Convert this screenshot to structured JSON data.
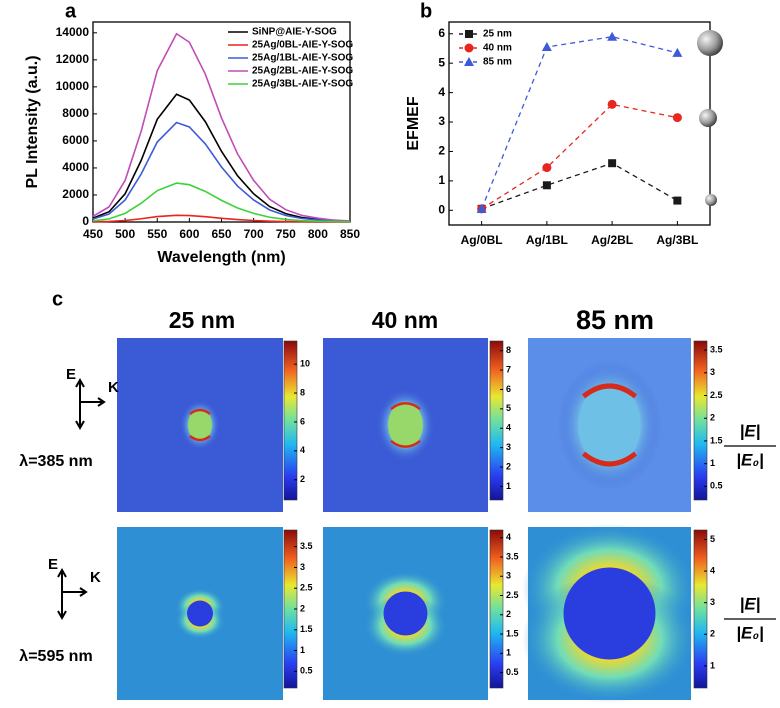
{
  "chart_data": [
    {
      "type": "line",
      "panel_label": "a",
      "x_label": "Wavelength (nm)",
      "y_label": "PL Intensity (a.u.)",
      "x": [
        450,
        475,
        500,
        525,
        550,
        580,
        600,
        625,
        650,
        675,
        700,
        725,
        750,
        775,
        800,
        825,
        850
      ],
      "series": [
        {
          "name": "SiNP@AIE-Y-SOG",
          "color": "#000000",
          "values": [
            285,
            760,
            2090,
            4560,
            7600,
            9450,
            9030,
            7410,
            5230,
            3420,
            2090,
            1140,
            620,
            330,
            190,
            95,
            50
          ]
        },
        {
          "name": "25Ag/0BL-AIE-Y-SOG",
          "color": "#e8251e",
          "values": [
            15,
            40,
            110,
            240,
            400,
            495,
            475,
            390,
            275,
            180,
            110,
            60,
            35,
            20,
            10,
            5,
            3
          ]
        },
        {
          "name": "25Ag/1BL-AIE-Y-SOG",
          "color": "#3d5bd9",
          "values": [
            220,
            590,
            1630,
            3550,
            5920,
            7360,
            7030,
            5770,
            4070,
            2660,
            1630,
            890,
            480,
            260,
            150,
            75,
            35
          ]
        },
        {
          "name": "25Ag/2BL-AIE-Y-SOG",
          "color": "#c04cb8",
          "values": [
            420,
            1120,
            3080,
            6720,
            11200,
            13930,
            13300,
            10920,
            7700,
            5040,
            3080,
            1680,
            910,
            490,
            280,
            140,
            70
          ]
        },
        {
          "name": "25Ag/3BL-AIE-Y-SOG",
          "color": "#3ed23a",
          "values": [
            90,
            230,
            640,
            1390,
            2320,
            2880,
            2760,
            2260,
            1600,
            1040,
            640,
            350,
            190,
            100,
            60,
            30,
            15
          ]
        }
      ],
      "xlim": [
        450,
        850
      ],
      "xticks": [
        450,
        500,
        550,
        600,
        650,
        700,
        750,
        800,
        850
      ],
      "ylim": [
        0,
        14800
      ],
      "yticks": [
        0,
        2000,
        4000,
        6000,
        8000,
        10000,
        12000,
        14000
      ],
      "legend": "top-right"
    },
    {
      "type": "line",
      "panel_label": "b",
      "y_label": "EFMEF",
      "categories": [
        "Ag/0BL",
        "Ag/1BL",
        "Ag/2BL",
        "Ag/3BL"
      ],
      "series": [
        {
          "name": "25 nm",
          "color": "#1a1a1a",
          "marker": "square",
          "line_style": "dashed",
          "values": [
            0.05,
            0.85,
            1.6,
            0.33
          ]
        },
        {
          "name": "40 nm",
          "color": "#e8251e",
          "marker": "circle",
          "line_style": "dashed",
          "values": [
            0.05,
            1.45,
            3.6,
            3.15
          ]
        },
        {
          "name": "85 nm",
          "color": "#3d5bd9",
          "marker": "triangle",
          "line_style": "dashed",
          "values": [
            0.05,
            5.55,
            5.9,
            5.35
          ]
        }
      ],
      "ylim": [
        -0.5,
        6.4
      ],
      "yticks": [
        0,
        1,
        2,
        3,
        4,
        5,
        6
      ],
      "legend": "top-left"
    }
  ],
  "panel_c": {
    "label": "c",
    "columns": [
      "25 nm",
      "40 nm",
      "85 nm"
    ],
    "rows": [
      {
        "wavelength": "λ=385 nm",
        "field_axis": "E",
        "wave_axis": "K",
        "quantity": {
          "numerator": "|E|",
          "denominator": "|E₀|"
        },
        "colorbars": [
          {
            "lim": [
              0.6,
              11.6
            ],
            "ticks": [
              2,
              4,
              6,
              8,
              10
            ]
          },
          {
            "lim": [
              0.3,
              8.5
            ],
            "ticks": [
              1,
              2,
              3,
              4,
              5,
              6,
              7,
              8
            ]
          },
          {
            "lim": [
              0.2,
              3.7
            ],
            "ticks": [
              0.5,
              1,
              1.5,
              2,
              2.5,
              3,
              3.5
            ]
          }
        ]
      },
      {
        "wavelength": "λ=595 nm",
        "field_axis": "E",
        "wave_axis": "K",
        "quantity": {
          "numerator": "|E|",
          "denominator": "|E₀|"
        },
        "colorbars": [
          {
            "lim": [
              0.1,
              3.9
            ],
            "ticks": [
              0.5,
              1,
              1.5,
              2,
              2.5,
              3,
              3.5
            ]
          },
          {
            "lim": [
              0.1,
              4.2
            ],
            "ticks": [
              0.5,
              1,
              1.5,
              2,
              2.5,
              3,
              3.5,
              4
            ]
          },
          {
            "lim": [
              0.3,
              5.3
            ],
            "ticks": [
              1,
              2,
              3,
              4,
              5
            ]
          }
        ]
      }
    ]
  }
}
